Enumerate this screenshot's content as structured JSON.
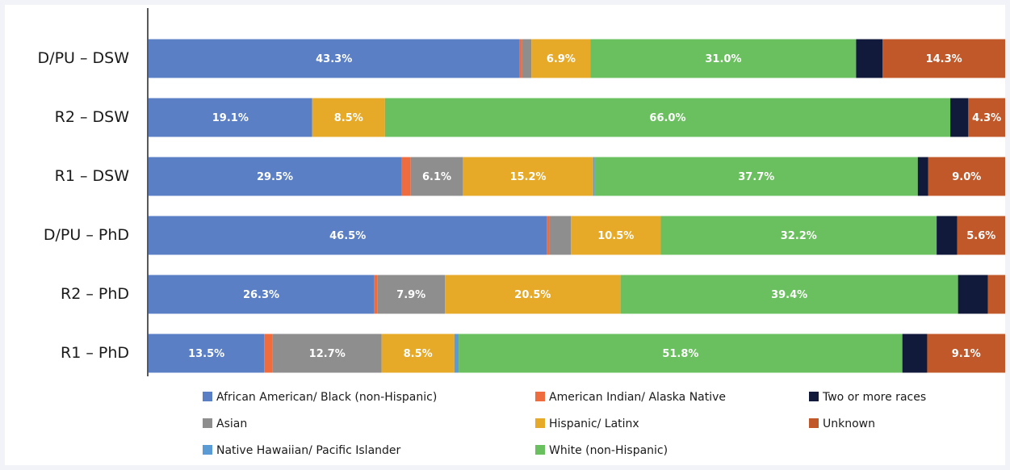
{
  "chart_data": {
    "type": "stacked-bar-horizontal",
    "categories": [
      "D/PU – DSW",
      "R2 – DSW",
      "R1 – DSW",
      "D/PU – PhD",
      "R2 – PhD",
      "R1 – PhD"
    ],
    "xlim": [
      0,
      100
    ],
    "series": [
      {
        "name": "African American/ Black (non-Hispanic)",
        "color": "#5b7fc4",
        "values": [
          43.3,
          19.1,
          29.5,
          46.5,
          26.3,
          13.5
        ],
        "value_labels": [
          "43.3%",
          "19.1%",
          "29.5%",
          "46.5%",
          "26.3%",
          "13.5%"
        ]
      },
      {
        "name": "American Indian/ Alaska Native",
        "color": "#ef6c3e",
        "values": [
          0.3,
          0,
          1.1,
          0.3,
          0.4,
          1.0
        ],
        "value_labels": [
          null,
          null,
          null,
          null,
          null,
          null
        ]
      },
      {
        "name": "Asian",
        "color": "#8e8e8e",
        "values": [
          1.1,
          0,
          6.1,
          2.5,
          7.9,
          12.7
        ],
        "value_labels": [
          null,
          null,
          "6.1%",
          null,
          "7.9%",
          "12.7%"
        ]
      },
      {
        "name": "Hispanic/ Latinx",
        "color": "#e6aa28",
        "values": [
          6.9,
          8.5,
          15.2,
          10.5,
          20.5,
          8.5
        ],
        "value_labels": [
          "6.9%",
          "8.5%",
          "15.2%",
          "10.5%",
          "20.5%",
          "8.5%"
        ]
      },
      {
        "name": "Native Hawaiian/ Pacific Islander",
        "color": "#5b9bd5",
        "values": [
          0,
          0,
          0.2,
          0,
          0,
          0.5
        ],
        "value_labels": [
          null,
          null,
          null,
          null,
          null,
          null
        ]
      },
      {
        "name": "White (non-Hispanic)",
        "color": "#6abf5e",
        "values": [
          31.0,
          66.0,
          37.7,
          32.2,
          39.4,
          51.8
        ],
        "value_labels": [
          "31.0%",
          "66.0%",
          "37.7%",
          "32.2%",
          "39.4%",
          "51.8%"
        ]
      },
      {
        "name": "Two or more races",
        "color": "#121a3b",
        "values": [
          3.1,
          2.1,
          1.2,
          2.4,
          3.5,
          2.9
        ],
        "value_labels": [
          null,
          null,
          null,
          null,
          null,
          null
        ]
      },
      {
        "name": "Unknown",
        "color": "#c0582a",
        "values": [
          14.3,
          4.3,
          9.0,
          5.6,
          2.0,
          9.1
        ],
        "value_labels": [
          "14.3%",
          "4.3%",
          "9.0%",
          "5.6%",
          null,
          "9.1%"
        ]
      }
    ],
    "legend": "bottom"
  }
}
